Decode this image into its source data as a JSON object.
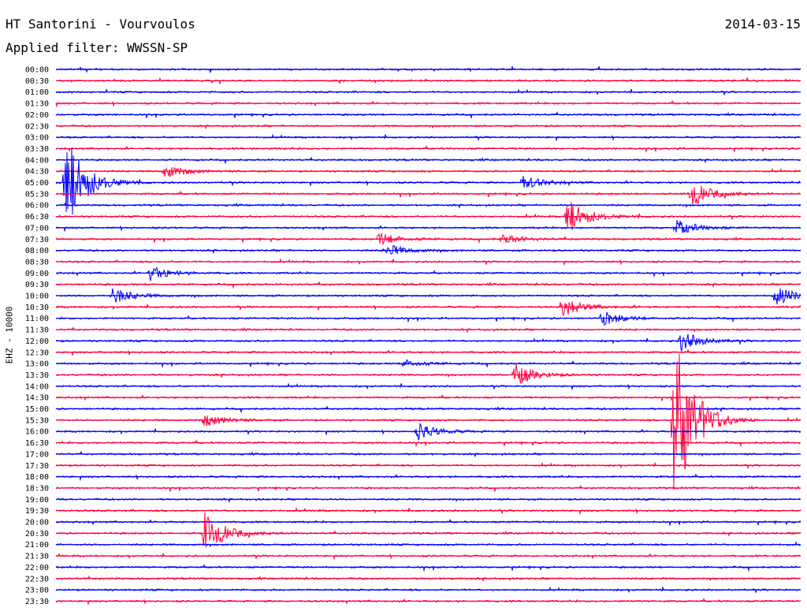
{
  "header": {
    "title": "HT Santorini - Vourvoulos",
    "date": "2014-03-15",
    "filter": "Applied filter: WWSSN-SP"
  },
  "chart_data": {
    "type": "line",
    "title": "HT Santorini - Vourvoulos",
    "subtitle": "Applied filter: WWSSN-SP",
    "ylabel": "EHZ - 10000",
    "xlabel": "",
    "grid": false,
    "colors": {
      "odd_trace": "#0000ff",
      "even_trace": "#ff0040"
    },
    "xlim_minutes": [
      0,
      30
    ],
    "rows": [
      "00:00",
      "00:30",
      "01:00",
      "01:30",
      "02:00",
      "02:30",
      "03:00",
      "03:30",
      "04:00",
      "04:30",
      "05:00",
      "05:30",
      "06:00",
      "06:30",
      "07:00",
      "07:30",
      "08:00",
      "08:30",
      "09:00",
      "09:30",
      "10:00",
      "10:30",
      "11:00",
      "11:30",
      "12:00",
      "12:30",
      "13:00",
      "13:30",
      "14:00",
      "14:30",
      "15:00",
      "15:30",
      "16:00",
      "16:30",
      "17:00",
      "17:30",
      "18:00",
      "18:30",
      "19:00",
      "19:30",
      "20:00",
      "20:30",
      "21:00",
      "21:30",
      "22:00",
      "22:30",
      "23:00",
      "23:30"
    ],
    "events": [
      {
        "row": "04:30",
        "minute": 4.4,
        "amplitude": 8
      },
      {
        "row": "05:00",
        "minute": 0.4,
        "amplitude": 60
      },
      {
        "row": "05:00",
        "minute": 18.8,
        "amplitude": 9
      },
      {
        "row": "05:30",
        "minute": 25.6,
        "amplitude": 16
      },
      {
        "row": "06:30",
        "minute": 20.6,
        "amplitude": 22
      },
      {
        "row": "07:00",
        "minute": 25.0,
        "amplitude": 10
      },
      {
        "row": "07:30",
        "minute": 13.0,
        "amplitude": 8
      },
      {
        "row": "07:30",
        "minute": 18.0,
        "amplitude": 6
      },
      {
        "row": "08:00",
        "minute": 13.3,
        "amplitude": 8
      },
      {
        "row": "09:00",
        "minute": 3.8,
        "amplitude": 9
      },
      {
        "row": "10:00",
        "minute": 2.3,
        "amplitude": 10
      },
      {
        "row": "10:00",
        "minute": 29.0,
        "amplitude": 12
      },
      {
        "row": "10:30",
        "minute": 20.4,
        "amplitude": 12
      },
      {
        "row": "11:00",
        "minute": 22.0,
        "amplitude": 9
      },
      {
        "row": "12:00",
        "minute": 25.2,
        "amplitude": 12
      },
      {
        "row": "13:00",
        "minute": 14.0,
        "amplitude": 5
      },
      {
        "row": "13:30",
        "minute": 18.5,
        "amplitude": 14
      },
      {
        "row": "15:30",
        "minute": 6.0,
        "amplitude": 8
      },
      {
        "row": "15:30",
        "minute": 24.9,
        "amplitude": 118
      },
      {
        "row": "16:00",
        "minute": 14.6,
        "amplitude": 10
      },
      {
        "row": "20:30",
        "minute": 6.0,
        "amplitude": 26
      }
    ]
  }
}
